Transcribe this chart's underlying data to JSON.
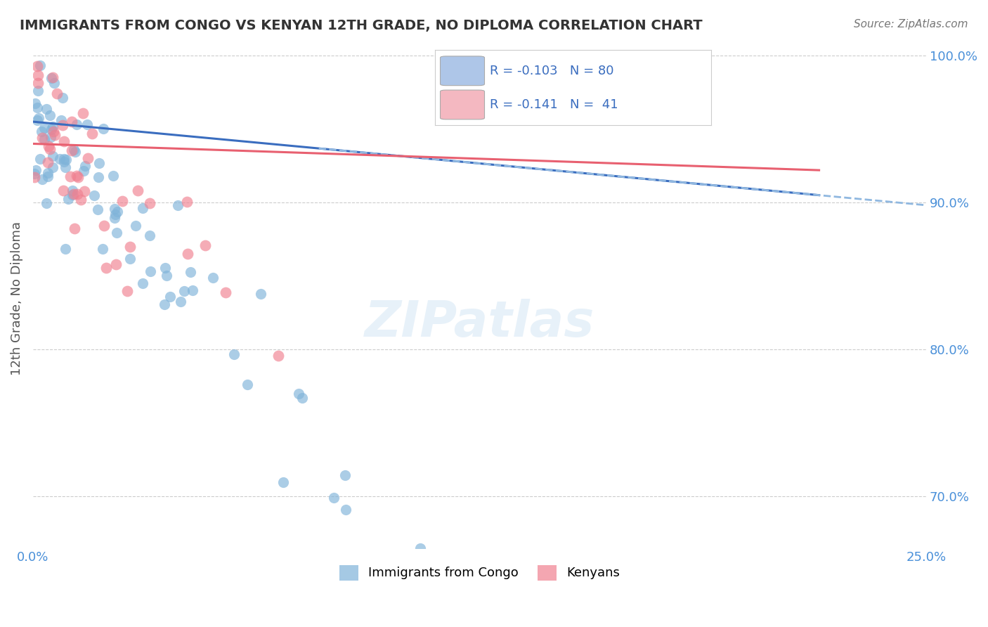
{
  "title": "IMMIGRANTS FROM CONGO VS KENYAN 12TH GRADE, NO DIPLOMA CORRELATION CHART",
  "source": "Source: ZipAtlas.com",
  "ylabel": "12th Grade, No Diploma",
  "xlim": [
    0.0,
    0.25
  ],
  "ylim": [
    0.665,
    1.005
  ],
  "xtick_labels": [
    "0.0%",
    "25.0%"
  ],
  "ytick_labels": [
    "70.0%",
    "80.0%",
    "90.0%",
    "100.0%"
  ],
  "ytick_values": [
    0.7,
    0.8,
    0.9,
    1.0
  ],
  "legend_r1_val": "-0.103",
  "legend_n1_val": "80",
  "legend_r2_val": "-0.141",
  "legend_n2_val": "41",
  "legend_color1": "#aec6e8",
  "legend_color2": "#f4b8c1",
  "scatter_color_blue": "#7fb3d9",
  "scatter_color_pink": "#f08090",
  "line_color_blue": "#3a6dbf",
  "line_color_pink": "#e86070",
  "line_color_blue_dashed": "#90b8e0",
  "watermark": "ZIPatlas",
  "background_color": "#ffffff",
  "grid_color": "#cccccc",
  "tick_color": "#4a90d9",
  "title_color": "#333333",
  "source_color": "#777777",
  "ylabel_color": "#555555",
  "legend_text_color": "#3a6dbf"
}
